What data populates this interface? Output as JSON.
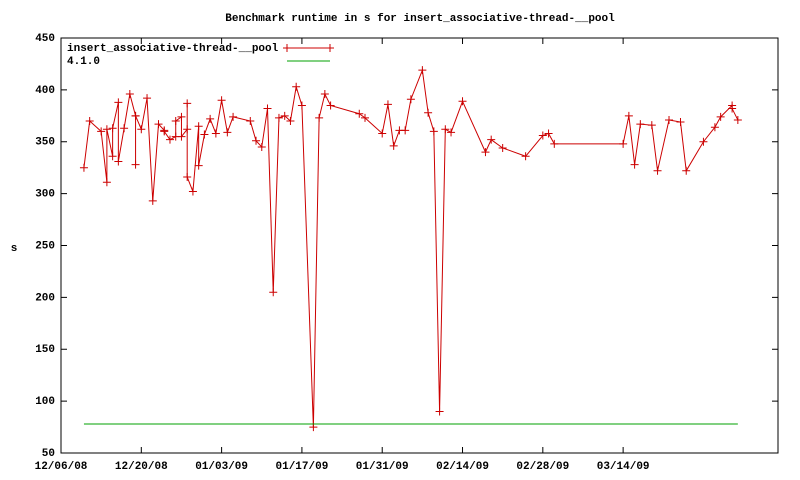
{
  "chart_data": {
    "type": "line",
    "title": "Benchmark runtime in s for insert_associative-thread-__pool",
    "ylabel": "s",
    "xlim": [
      "2008-12-06",
      "2009-04-10"
    ],
    "xticks": [
      {
        "value": "2008-12-06",
        "label": "12/06/08"
      },
      {
        "value": "2008-12-20",
        "label": "12/20/08"
      },
      {
        "value": "2009-01-03",
        "label": "01/03/09"
      },
      {
        "value": "2009-01-17",
        "label": "01/17/09"
      },
      {
        "value": "2009-01-31",
        "label": "01/31/09"
      },
      {
        "value": "2009-02-14",
        "label": "02/14/09"
      },
      {
        "value": "2009-02-28",
        "label": "02/28/09"
      },
      {
        "value": "2009-03-14",
        "label": "03/14/09"
      }
    ],
    "ylim": [
      50,
      450
    ],
    "yticks": [
      50,
      100,
      150,
      200,
      250,
      300,
      350,
      400,
      450
    ],
    "legend": "top-left",
    "series": [
      {
        "name": "insert_associative-thread-__pool",
        "color": "#cc0000",
        "marker": true,
        "x": [
          "2008-12-10",
          "2008-12-11",
          "2008-12-13",
          "2008-12-14",
          "2008-12-14",
          "2008-12-15",
          "2008-12-15",
          "2008-12-16",
          "2008-12-16",
          "2008-12-17",
          "2008-12-18",
          "2008-12-19",
          "2008-12-19",
          "2008-12-19",
          "2008-12-20",
          "2008-12-21",
          "2008-12-22",
          "2008-12-23",
          "2008-12-24",
          "2008-12-24",
          "2008-12-25",
          "2008-12-26",
          "2008-12-26",
          "2008-12-27",
          "2008-12-27",
          "2008-12-28",
          "2008-12-28",
          "2008-12-28",
          "2008-12-29",
          "2008-12-30",
          "2008-12-30",
          "2008-12-31",
          "2009-01-01",
          "2009-01-02",
          "2009-01-03",
          "2009-01-04",
          "2009-01-05",
          "2009-01-08",
          "2009-01-09",
          "2009-01-10",
          "2009-01-11",
          "2009-01-12",
          "2009-01-13",
          "2009-01-14",
          "2009-01-15",
          "2009-01-16",
          "2009-01-17",
          "2009-01-19",
          "2009-01-20",
          "2009-01-21",
          "2009-01-22",
          "2009-01-27",
          "2009-01-28",
          "2009-01-31",
          "2009-02-01",
          "2009-02-02",
          "2009-02-03",
          "2009-02-04",
          "2009-02-05",
          "2009-02-07",
          "2009-02-08",
          "2009-02-09",
          "2009-02-10",
          "2009-02-11",
          "2009-02-12",
          "2009-02-14",
          "2009-02-18",
          "2009-02-19",
          "2009-02-21",
          "2009-02-25",
          "2009-02-28",
          "2009-03-01",
          "2009-03-02",
          "2009-03-14",
          "2009-03-15",
          "2009-03-16",
          "2009-03-17",
          "2009-03-19",
          "2009-03-20",
          "2009-03-22",
          "2009-03-24",
          "2009-03-25",
          "2009-03-28",
          "2009-03-30",
          "2009-03-31",
          "2009-04-02",
          "2009-04-02",
          "2009-04-03"
        ],
        "values": [
          325,
          370,
          360,
          311,
          362,
          336,
          363,
          388,
          331,
          363,
          396,
          375,
          328,
          375,
          362,
          392,
          293,
          367,
          361,
          360,
          352,
          355,
          370,
          374,
          355,
          362,
          387,
          316,
          302,
          365,
          327,
          357,
          372,
          358,
          390,
          359,
          374,
          370,
          351,
          345,
          382,
          205,
          373,
          375,
          370,
          403,
          385,
          75,
          373,
          396,
          385,
          377,
          373,
          358,
          386,
          346,
          361,
          361,
          391,
          419,
          378,
          360,
          90,
          362,
          359,
          389,
          340,
          352,
          344,
          336,
          356,
          358,
          348,
          348,
          375,
          328,
          367,
          366,
          322,
          371,
          369,
          322,
          350,
          364,
          374,
          385,
          382,
          371
        ]
      },
      {
        "name": "4.1.0",
        "color": "#00a000",
        "marker": false,
        "x": [
          "2008-12-10",
          "2009-04-03"
        ],
        "values": [
          78,
          78
        ]
      }
    ]
  }
}
